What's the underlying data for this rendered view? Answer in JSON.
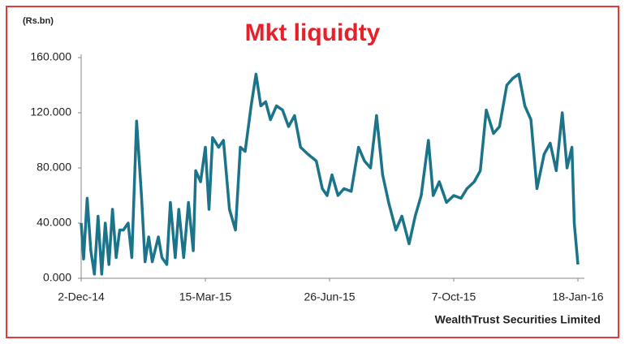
{
  "chart_data": {
    "type": "line",
    "title": "Mkt liquidty",
    "y_label": "(Rs.bn)",
    "source": "WealthTrust Securities Limited",
    "color": "#1b7489",
    "x": [
      "2014-12-02",
      "2014-12-04",
      "2014-12-07",
      "2014-12-10",
      "2014-12-13",
      "2014-12-16",
      "2014-12-19",
      "2014-12-22",
      "2014-12-25",
      "2014-12-28",
      "2014-12-31",
      "2015-01-03",
      "2015-01-06",
      "2015-01-10",
      "2015-01-13",
      "2015-01-17",
      "2015-01-21",
      "2015-01-24",
      "2015-01-27",
      "2015-01-30",
      "2015-02-04",
      "2015-02-07",
      "2015-02-11",
      "2015-02-14",
      "2015-02-18",
      "2015-02-21",
      "2015-02-25",
      "2015-03-01",
      "2015-03-05",
      "2015-03-07",
      "2015-03-11",
      "2015-03-15",
      "2015-03-18",
      "2015-03-21",
      "2015-03-26",
      "2015-03-30",
      "2015-04-04",
      "2015-04-09",
      "2015-04-13",
      "2015-04-17",
      "2015-04-22",
      "2015-04-26",
      "2015-04-30",
      "2015-05-04",
      "2015-05-08",
      "2015-05-13",
      "2015-05-18",
      "2015-05-23",
      "2015-05-28",
      "2015-06-02",
      "2015-06-08",
      "2015-06-15",
      "2015-06-20",
      "2015-06-24",
      "2015-06-28",
      "2015-07-03",
      "2015-07-08",
      "2015-07-14",
      "2015-07-20",
      "2015-07-25",
      "2015-07-30",
      "2015-08-04",
      "2015-08-09",
      "2015-08-14",
      "2015-08-20",
      "2015-08-25",
      "2015-08-31",
      "2015-09-05",
      "2015-09-10",
      "2015-09-16",
      "2015-09-20",
      "2015-09-25",
      "2015-10-01",
      "2015-10-07",
      "2015-10-13",
      "2015-10-18",
      "2015-10-24",
      "2015-10-29",
      "2015-11-03",
      "2015-11-09",
      "2015-11-14",
      "2015-11-20",
      "2015-11-25",
      "2015-11-30",
      "2015-12-05",
      "2015-12-10",
      "2015-12-15",
      "2015-12-21",
      "2015-12-26",
      "2015-12-31",
      "2016-01-05",
      "2016-01-09",
      "2016-01-13",
      "2016-01-15",
      "2016-01-18"
    ],
    "values": [
      40,
      14,
      58,
      20,
      3,
      45,
      3,
      40,
      10,
      50,
      15,
      35,
      35,
      40,
      15,
      114,
      60,
      12,
      30,
      12,
      30,
      15,
      10,
      55,
      15,
      50,
      15,
      55,
      20,
      78,
      70,
      95,
      50,
      102,
      95,
      100,
      50,
      35,
      95,
      92,
      125,
      148,
      125,
      128,
      115,
      125,
      122,
      110,
      118,
      95,
      90,
      85,
      65,
      60,
      75,
      60,
      65,
      63,
      95,
      85,
      80,
      118,
      75,
      55,
      35,
      45,
      25,
      45,
      60,
      100,
      60,
      70,
      55,
      60,
      58,
      65,
      70,
      78,
      122,
      105,
      110,
      140,
      145,
      148,
      125,
      115,
      65,
      90,
      98,
      78,
      120,
      80,
      95,
      40,
      10
    ],
    "xlim": [
      "2014-12-02",
      "2016-01-18"
    ],
    "xticks": [
      {
        "value": "2014-12-02",
        "label": "2-Dec-14"
      },
      {
        "value": "2015-03-15",
        "label": "15-Mar-15"
      },
      {
        "value": "2015-06-26",
        "label": "26-Jun-15"
      },
      {
        "value": "2015-10-07",
        "label": "7-Oct-15"
      },
      {
        "value": "2016-01-18",
        "label": "18-Jan-16"
      }
    ],
    "ylim": [
      0,
      160
    ],
    "yticks": [
      {
        "value": 0,
        "label": "0.000"
      },
      {
        "value": 40,
        "label": "40.000"
      },
      {
        "value": 80,
        "label": "80.000"
      },
      {
        "value": 120,
        "label": "120.000"
      },
      {
        "value": 160,
        "label": "160.000"
      }
    ]
  }
}
